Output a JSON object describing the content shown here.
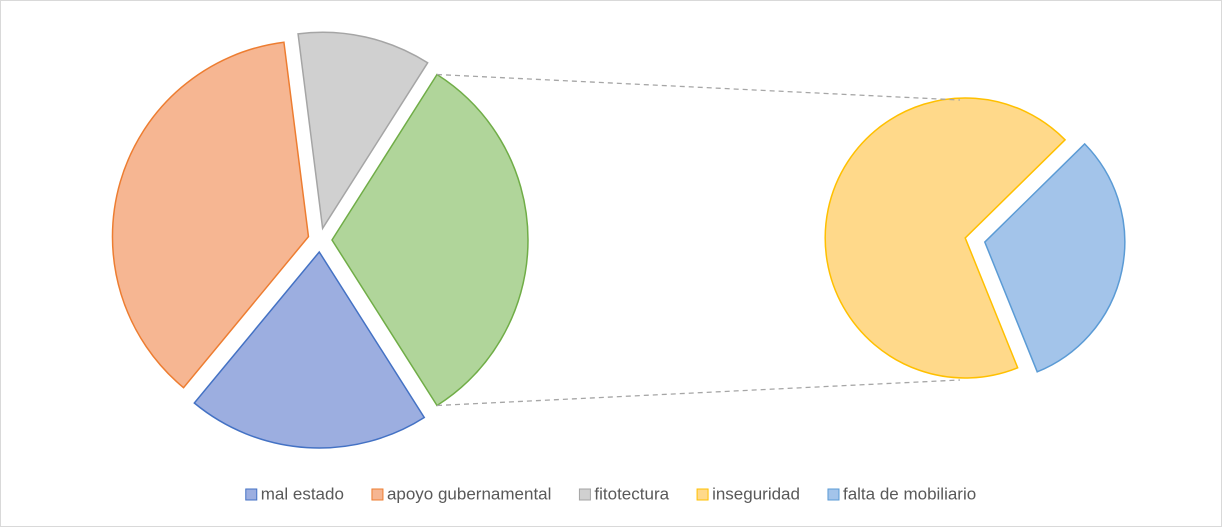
{
  "chart_data": {
    "type": "pie-of-pie",
    "categories": [
      "mal estado",
      "apoyo gubernamental",
      "fitotectura",
      "inseguridad",
      "falta de mobiliario"
    ],
    "values": [
      20,
      37,
      11,
      22,
      10
    ],
    "colors": [
      "#9caee0",
      "#f6b692",
      "#d0d0d0",
      "#ffd98a",
      "#a3c4ea"
    ],
    "stroke_colors": [
      "#4472c4",
      "#ed7d31",
      "#a5a5a5",
      "#ffc000",
      "#5b9bd5"
    ],
    "second_pie_count": 2,
    "other_color": "#b0d59a",
    "other_stroke": "#70ad47",
    "legend": "bottom"
  }
}
